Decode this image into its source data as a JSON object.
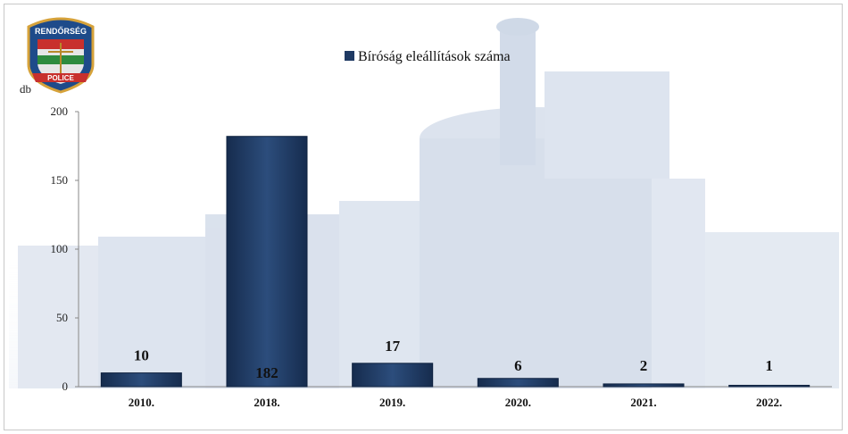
{
  "chart_data": {
    "type": "bar",
    "categories": [
      "2010.",
      "2018.",
      "2019.",
      "2020.",
      "2021.",
      "2022."
    ],
    "series": [
      {
        "name": "Bíróság eleállítások száma",
        "values": [
          10,
          182,
          17,
          6,
          2,
          1
        ]
      }
    ],
    "ylabel": "db",
    "ylim": [
      0,
      200
    ],
    "yticks": [
      0,
      50,
      100,
      150,
      200
    ],
    "legend_position": "top",
    "grid": false,
    "colors": {
      "bar": "#1f3a63",
      "bar_highlight": "#3a5d8f",
      "bg_building": "#b9c6dc"
    }
  },
  "logo": {
    "top_text": "RENDŐRSÉG",
    "bottom_text": "POLICE"
  }
}
